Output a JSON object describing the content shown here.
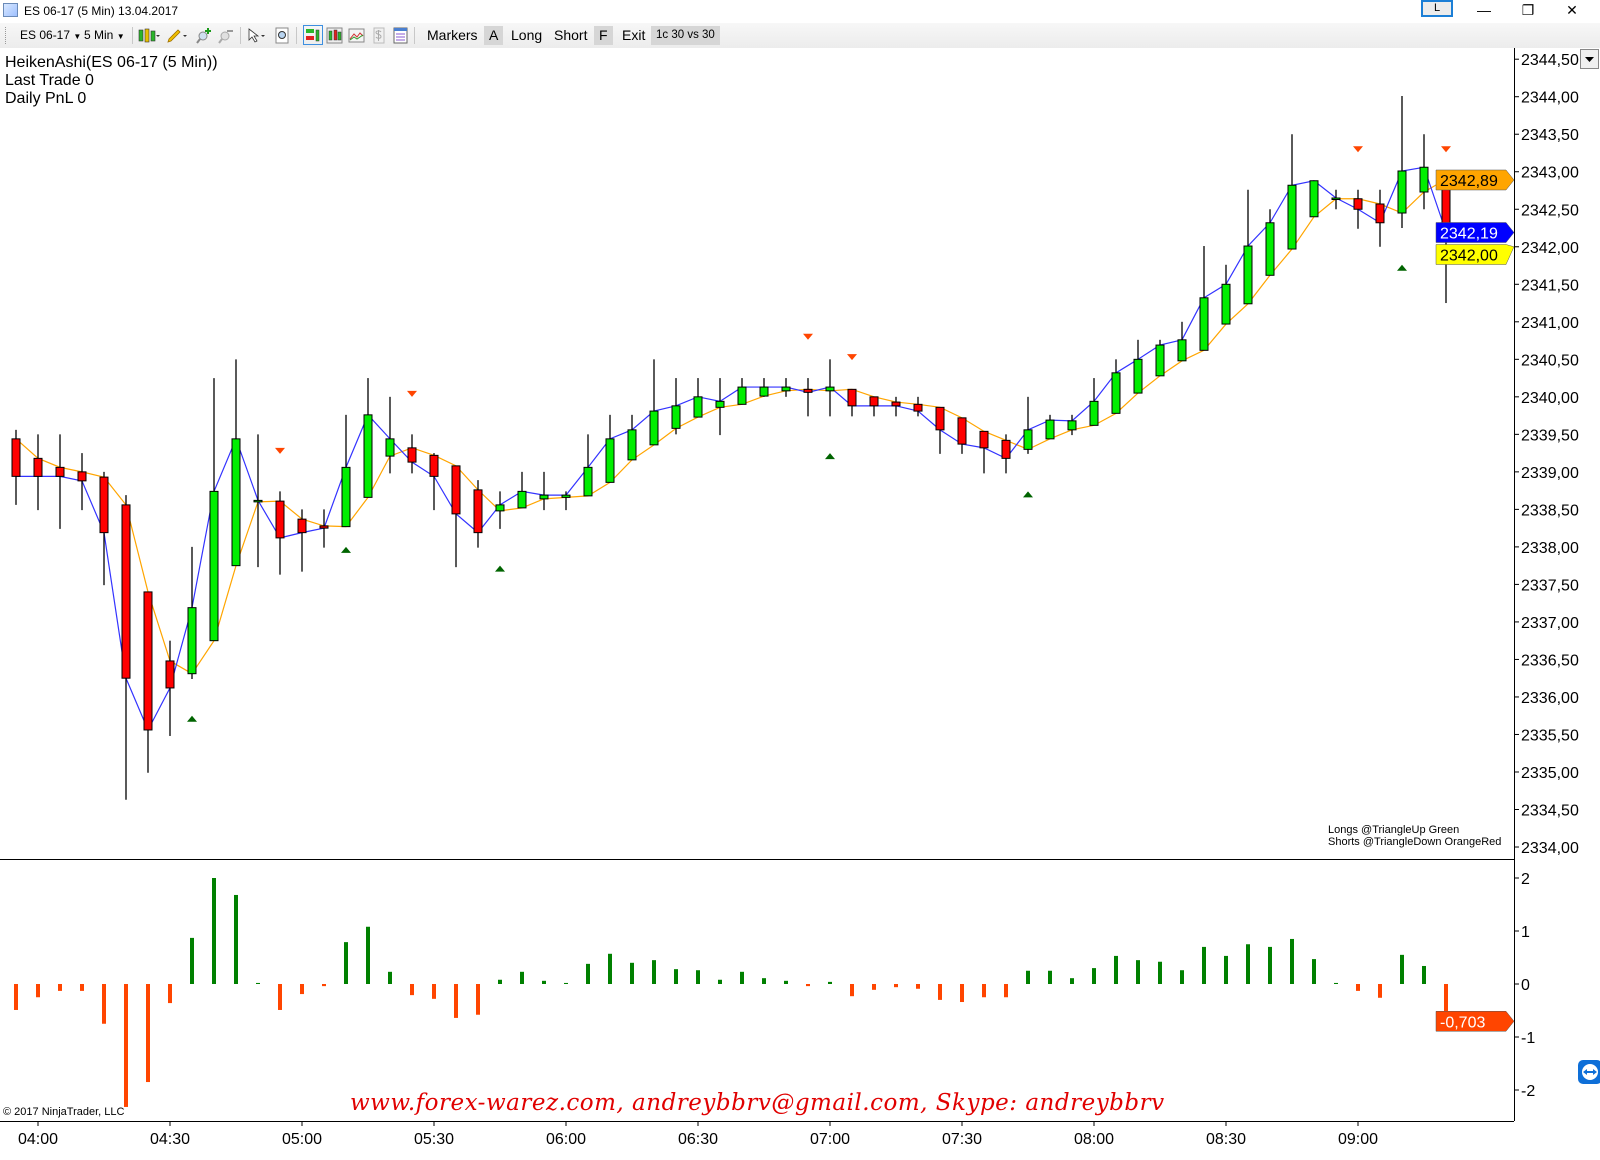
{
  "window": {
    "title": "ES 06-17 (5 Min)  13.04.2017",
    "l_button": "L",
    "minimize": "—",
    "restore": "❐",
    "close": "✕"
  },
  "toolbar": {
    "instrument": "ES 06-17",
    "interval": "5 Min",
    "markers": "Markers",
    "a": "A",
    "long": "Long",
    "short": "Short",
    "f": "F",
    "exit": "Exit",
    "strategy": "1c 30 vs 30",
    "icons": [
      "candlestick-style-icon",
      "pencil-draw-icon",
      "zoom-in-icon",
      "zoom-out-icon",
      "pointer-icon",
      "magnifier-icon",
      "chart-trader-icon",
      "bars-icon",
      "data-box-icon",
      "dollar-icon",
      "properties-icon"
    ]
  },
  "info": {
    "indicator": "HeikenAshi(ES 06-17 (5 Min))",
    "last_trade": "Last Trade 0",
    "daily_pnl": "Daily PnL  0"
  },
  "legend": {
    "longs": "Longs @TriangleUp Green",
    "shorts": "Shorts @TriangleDown OrangeRed"
  },
  "copyright": "© 2017 NinjaTrader, LLC",
  "watermark": "www.forex-warez.com, andreybbrv@gmail.com, Skype: andreybbrv",
  "colors": {
    "up": "#00ee00",
    "down": "#ff0000",
    "ha_open_line": "#ffa500",
    "ha_close_line": "#3333ff",
    "long_marker": "#006400",
    "short_marker": "#ff4500",
    "hist_up": "#008000",
    "hist_down": "#ff4500"
  },
  "chart_data": [
    {
      "type": "candlestick",
      "title": "HeikenAshi(ES 06-17 (5 Min))",
      "bar_interval_minutes": 5,
      "first_bar_time": "03:55",
      "ylim": [
        2333.85,
        2344.65
      ],
      "price_ticks": [
        {
          "v": 2344.5,
          "label": "2344,50"
        },
        {
          "v": 2344.0,
          "label": "2344,00"
        },
        {
          "v": 2343.5,
          "label": "2343,50"
        },
        {
          "v": 2343.0,
          "label": "2343,00"
        },
        {
          "v": 2342.5,
          "label": "2342,50"
        },
        {
          "v": 2342.0,
          "label": "2342,00"
        },
        {
          "v": 2341.5,
          "label": "2341,50"
        },
        {
          "v": 2341.0,
          "label": "2341,00"
        },
        {
          "v": 2340.5,
          "label": "2340,50"
        },
        {
          "v": 2340.0,
          "label": "2340,00"
        },
        {
          "v": 2339.5,
          "label": "2339,50"
        },
        {
          "v": 2339.0,
          "label": "2339,00"
        },
        {
          "v": 2338.5,
          "label": "2338,50"
        },
        {
          "v": 2338.0,
          "label": "2338,00"
        },
        {
          "v": 2337.5,
          "label": "2337,50"
        },
        {
          "v": 2337.0,
          "label": "2337,00"
        },
        {
          "v": 2336.5,
          "label": "2336,50"
        },
        {
          "v": 2336.0,
          "label": "2336,00"
        },
        {
          "v": 2335.5,
          "label": "2335,50"
        },
        {
          "v": 2335.0,
          "label": "2335,00"
        },
        {
          "v": 2334.5,
          "label": "2334,50"
        },
        {
          "v": 2334.0,
          "label": "2334,00"
        }
      ],
      "time_ticks": [
        {
          "bar": 1,
          "label": "04:00"
        },
        {
          "bar": 7,
          "label": "04:30"
        },
        {
          "bar": 13,
          "label": "05:00"
        },
        {
          "bar": 19,
          "label": "05:30"
        },
        {
          "bar": 25,
          "label": "06:00"
        },
        {
          "bar": 31,
          "label": "06:30"
        },
        {
          "bar": 37,
          "label": "07:00"
        },
        {
          "bar": 43,
          "label": "07:30"
        },
        {
          "bar": 49,
          "label": "08:00"
        },
        {
          "bar": 55,
          "label": "08:30"
        },
        {
          "bar": 61,
          "label": "09:00"
        }
      ],
      "ohlc_fields": [
        "open",
        "high",
        "low",
        "close"
      ],
      "ohlc": [
        [
          2339.44,
          2339.56,
          2338.56,
          2338.94
        ],
        [
          2339.18,
          2339.5,
          2338.49,
          2338.94
        ],
        [
          2339.06,
          2339.5,
          2338.24,
          2338.94
        ],
        [
          2339.0,
          2339.25,
          2338.49,
          2338.88
        ],
        [
          2338.93,
          2339.0,
          2337.49,
          2338.19
        ],
        [
          2338.56,
          2338.69,
          2334.63,
          2336.25
        ],
        [
          2337.4,
          2337.4,
          2334.99,
          2335.56
        ],
        [
          2336.48,
          2336.75,
          2335.48,
          2336.12
        ],
        [
          2336.31,
          2338.0,
          2336.24,
          2337.19
        ],
        [
          2336.75,
          2340.25,
          2336.75,
          2338.74
        ],
        [
          2337.75,
          2340.5,
          2337.75,
          2339.44
        ],
        [
          2338.6,
          2339.5,
          2337.73,
          2338.62
        ],
        [
          2338.61,
          2338.74,
          2337.63,
          2338.12
        ],
        [
          2338.37,
          2338.5,
          2337.67,
          2338.19
        ],
        [
          2338.28,
          2338.5,
          2337.99,
          2338.25
        ],
        [
          2338.27,
          2339.76,
          2338.27,
          2339.06
        ],
        [
          2338.66,
          2340.25,
          2338.66,
          2339.76
        ],
        [
          2339.21,
          2340.0,
          2338.98,
          2339.44
        ],
        [
          2339.32,
          2339.5,
          2338.98,
          2339.13
        ],
        [
          2339.22,
          2339.25,
          2338.49,
          2338.94
        ],
        [
          2339.08,
          2339.08,
          2337.73,
          2338.44
        ],
        [
          2338.76,
          2338.89,
          2337.99,
          2338.19
        ],
        [
          2338.48,
          2338.74,
          2338.24,
          2338.56
        ],
        [
          2338.52,
          2339.0,
          2338.52,
          2338.74
        ],
        [
          2338.64,
          2339.0,
          2338.49,
          2338.69
        ],
        [
          2338.66,
          2338.74,
          2338.49,
          2338.69
        ],
        [
          2338.68,
          2339.5,
          2338.68,
          2339.06
        ],
        [
          2338.86,
          2339.76,
          2338.86,
          2339.44
        ],
        [
          2339.16,
          2339.76,
          2339.16,
          2339.56
        ],
        [
          2339.36,
          2340.5,
          2339.36,
          2339.81
        ],
        [
          2339.58,
          2340.25,
          2339.5,
          2339.88
        ],
        [
          2339.73,
          2340.25,
          2339.73,
          2340.0
        ],
        [
          2339.86,
          2340.25,
          2339.49,
          2339.94
        ],
        [
          2339.9,
          2340.25,
          2339.9,
          2340.13
        ],
        [
          2340.01,
          2340.25,
          2340.0,
          2340.13
        ],
        [
          2340.08,
          2340.25,
          2340.0,
          2340.13
        ],
        [
          2340.1,
          2340.25,
          2339.74,
          2340.06
        ],
        [
          2340.08,
          2340.5,
          2339.74,
          2340.13
        ],
        [
          2340.1,
          2340.1,
          2339.74,
          2339.88
        ],
        [
          2340.0,
          2340.0,
          2339.74,
          2339.88
        ],
        [
          2339.93,
          2340.0,
          2339.74,
          2339.88
        ],
        [
          2339.9,
          2340.0,
          2339.74,
          2339.81
        ],
        [
          2339.86,
          2339.86,
          2339.24,
          2339.56
        ],
        [
          2339.72,
          2339.72,
          2339.24,
          2339.37
        ],
        [
          2339.54,
          2339.54,
          2338.98,
          2339.32
        ],
        [
          2339.42,
          2339.5,
          2338.98,
          2339.18
        ],
        [
          2339.3,
          2340.0,
          2339.24,
          2339.56
        ],
        [
          2339.44,
          2339.76,
          2339.44,
          2339.69
        ],
        [
          2339.56,
          2339.76,
          2339.49,
          2339.68
        ],
        [
          2339.62,
          2340.25,
          2339.62,
          2339.94
        ],
        [
          2339.78,
          2340.5,
          2339.78,
          2340.32
        ],
        [
          2340.05,
          2340.76,
          2340.05,
          2340.5
        ],
        [
          2340.28,
          2340.76,
          2340.28,
          2340.69
        ],
        [
          2340.48,
          2341.0,
          2340.48,
          2340.76
        ],
        [
          2340.62,
          2342.01,
          2340.62,
          2341.32
        ],
        [
          2340.97,
          2341.76,
          2340.97,
          2341.5
        ],
        [
          2341.24,
          2342.76,
          2341.24,
          2342.01
        ],
        [
          2341.62,
          2342.5,
          2341.62,
          2342.32
        ],
        [
          2341.97,
          2343.5,
          2341.97,
          2342.82
        ],
        [
          2342.4,
          2342.88,
          2342.4,
          2342.88
        ],
        [
          2342.64,
          2342.76,
          2342.5,
          2342.65
        ],
        [
          2342.64,
          2342.76,
          2342.24,
          2342.5
        ],
        [
          2342.57,
          2342.76,
          2342.0,
          2342.32
        ],
        [
          2342.45,
          2344.01,
          2342.25,
          2343.01
        ],
        [
          2342.73,
          2343.5,
          2342.5,
          2343.06
        ],
        [
          2342.9,
          2342.9,
          2341.25,
          2342.2
        ]
      ],
      "long_markers": [
        {
          "bar": 8,
          "price": 2335.71
        },
        {
          "bar": 15,
          "price": 2337.96
        },
        {
          "bar": 22,
          "price": 2337.71
        },
        {
          "bar": 37,
          "price": 2339.21
        },
        {
          "bar": 46,
          "price": 2338.7
        },
        {
          "bar": 63,
          "price": 2341.72
        }
      ],
      "short_markers": [
        {
          "bar": 12,
          "price": 2339.28
        },
        {
          "bar": 18,
          "price": 2340.04
        },
        {
          "bar": 36,
          "price": 2340.8
        },
        {
          "bar": 38,
          "price": 2340.53
        },
        {
          "bar": 61,
          "price": 2343.3
        },
        {
          "bar": 65,
          "price": 2343.3
        }
      ],
      "price_labels": [
        {
          "name": "ha-open-price-label",
          "value": 2342.89,
          "label": "2342,89",
          "bg": "#ffa500",
          "fg": "#000000"
        },
        {
          "name": "ha-close-price-label",
          "value": 2342.19,
          "label": "2342,19",
          "bg": "#0000ff",
          "fg": "#ffffff"
        },
        {
          "name": "last-price-label",
          "value": 2342.0,
          "label": "2342,00",
          "bg": "#ffff00",
          "fg": "#000000"
        }
      ]
    },
    {
      "type": "bar",
      "title": "indicator histogram",
      "ylim": [
        -2.3,
        2.3
      ],
      "y_ticks": [
        {
          "v": 2,
          "label": "2"
        },
        {
          "v": 1,
          "label": "1"
        },
        {
          "v": 0,
          "label": "0"
        },
        {
          "v": -1,
          "label": "-1"
        },
        {
          "v": -2,
          "label": "-2"
        }
      ],
      "values": [
        -0.49,
        -0.25,
        -0.13,
        -0.13,
        -0.75,
        -2.32,
        -1.85,
        -0.36,
        0.87,
        2.0,
        1.68,
        0.02,
        -0.49,
        -0.19,
        -0.04,
        0.79,
        1.08,
        0.23,
        -0.21,
        -0.28,
        -0.64,
        -0.58,
        0.08,
        0.23,
        0.06,
        0.02,
        0.38,
        0.57,
        0.4,
        0.45,
        0.28,
        0.26,
        0.08,
        0.23,
        0.11,
        0.06,
        -0.04,
        0.04,
        -0.23,
        -0.11,
        -0.06,
        -0.09,
        -0.3,
        -0.34,
        -0.25,
        -0.25,
        0.25,
        0.25,
        0.11,
        0.3,
        0.53,
        0.45,
        0.42,
        0.26,
        0.7,
        0.53,
        0.75,
        0.7,
        0.85,
        0.47,
        0.02,
        -0.13,
        -0.26,
        0.55,
        0.34,
        -0.703
      ],
      "last_value_label": "-0,703"
    }
  ]
}
